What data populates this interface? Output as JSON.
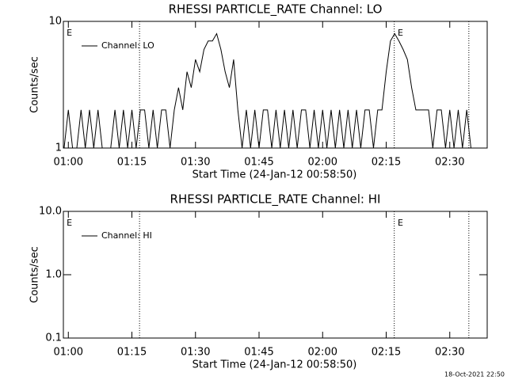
{
  "chart_data": [
    {
      "type": "line",
      "title": "RHESSI PARTICLE_RATE Channel: LO",
      "xlabel": "Start Time (24-Jan-12 00:58:50)",
      "ylabel": "Counts/sec",
      "log_y": true,
      "legend": "upper left",
      "xlim": [
        58.83,
        158.83
      ],
      "ylim": [
        1,
        10
      ],
      "xticks": [
        {
          "value": 60,
          "label": "01:00"
        },
        {
          "value": 75,
          "label": "01:15"
        },
        {
          "value": 90,
          "label": "01:30"
        },
        {
          "value": 105,
          "label": "01:45"
        },
        {
          "value": 120,
          "label": "02:00"
        },
        {
          "value": 135,
          "label": "02:15"
        },
        {
          "value": 150,
          "label": "02:30"
        }
      ],
      "yticks": [
        1,
        10
      ],
      "vlines": [
        76.8,
        136.9,
        154.5
      ],
      "annotations": [
        {
          "text": "E",
          "x": 59.6
        },
        {
          "text": "E",
          "x": 137.7
        }
      ],
      "x": [
        59,
        60,
        61,
        62,
        63,
        64,
        65,
        66,
        67,
        68,
        69,
        70,
        71,
        72,
        73,
        74,
        75,
        76,
        77,
        78,
        79,
        80,
        81,
        82,
        83,
        84,
        85,
        86,
        87,
        88,
        89,
        90,
        91,
        92,
        93,
        94,
        95,
        96,
        97,
        98,
        99,
        100,
        101,
        102,
        103,
        104,
        105,
        106,
        107,
        108,
        109,
        110,
        111,
        112,
        113,
        114,
        115,
        116,
        117,
        118,
        119,
        120,
        121,
        122,
        123,
        124,
        125,
        126,
        127,
        128,
        129,
        130,
        131,
        132,
        133,
        134,
        135,
        136,
        137,
        138,
        139,
        140,
        141,
        142,
        143,
        144,
        145,
        146,
        147,
        148,
        149,
        150,
        151,
        152,
        153,
        154,
        155
      ],
      "series": [
        {
          "name": "Channel: LO",
          "color": "#000000",
          "values": [
            1,
            2,
            1,
            1,
            2,
            1,
            2,
            1,
            2,
            1,
            1,
            1,
            2,
            1,
            2,
            1,
            2,
            1,
            2,
            2,
            1,
            2,
            1,
            2,
            2,
            1,
            2,
            3,
            2,
            4,
            3,
            5,
            4,
            6,
            7,
            7,
            8,
            6,
            4,
            3,
            5,
            2,
            1,
            2,
            1,
            2,
            1,
            2,
            2,
            1,
            2,
            1,
            2,
            1,
            2,
            1,
            2,
            2,
            1,
            2,
            1,
            2,
            1,
            2,
            1,
            2,
            1,
            2,
            1,
            2,
            1,
            2,
            2,
            1,
            2,
            2,
            4,
            7,
            8,
            7,
            6,
            5,
            3,
            2,
            2,
            2,
            2,
            1,
            2,
            2,
            1,
            2,
            1,
            2,
            1,
            2,
            1
          ]
        }
      ]
    },
    {
      "type": "line",
      "title": "RHESSI PARTICLE_RATE Channel: HI",
      "xlabel": "Start Time (24-Jan-12 00:58:50)",
      "ylabel": "Counts/sec",
      "log_y": true,
      "legend": "upper left",
      "xlim": [
        58.83,
        158.83
      ],
      "ylim": [
        0.1,
        10
      ],
      "xticks": [
        {
          "value": 60,
          "label": "01:00"
        },
        {
          "value": 75,
          "label": "01:15"
        },
        {
          "value": 90,
          "label": "01:30"
        },
        {
          "value": 105,
          "label": "01:45"
        },
        {
          "value": 120,
          "label": "02:00"
        },
        {
          "value": 135,
          "label": "02:15"
        },
        {
          "value": 150,
          "label": "02:30"
        }
      ],
      "yticks": [
        0.1,
        {
          "value": 1,
          "label": "1.0"
        },
        {
          "value": 10,
          "label": "10.0"
        }
      ],
      "vlines": [
        76.8,
        136.9,
        154.5
      ],
      "annotations": [
        {
          "text": "E",
          "x": 59.6
        },
        {
          "text": "E",
          "x": 137.7
        }
      ],
      "x": [],
      "series": [
        {
          "name": "Channel: HI",
          "color": "#000000",
          "values": []
        }
      ]
    }
  ],
  "footer": "18-Oct-2021 22:50"
}
